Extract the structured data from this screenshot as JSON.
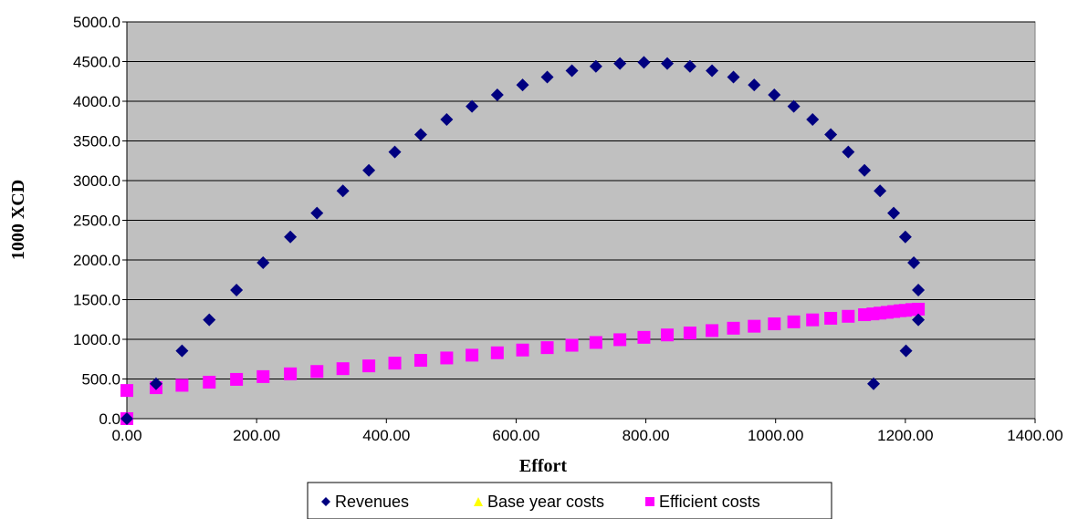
{
  "chart_data": {
    "type": "scatter",
    "title": "",
    "xlabel": "Effort",
    "ylabel": "1000 XCD",
    "xlim": [
      0,
      1400
    ],
    "ylim": [
      0,
      5000
    ],
    "x_ticks": [
      "0.00",
      "200.00",
      "400.00",
      "600.00",
      "800.00",
      "1000.00",
      "1200.00",
      "1400.00"
    ],
    "y_ticks": [
      "0.0",
      "500.0",
      "1000.0",
      "1500.0",
      "2000.0",
      "2500.0",
      "3000.0",
      "3500.0",
      "4000.0",
      "4500.0",
      "5000.0"
    ],
    "grid": "horizontal",
    "plot_background": "#c0c0c0",
    "legend_position": "bottom",
    "series": [
      {
        "name": "Revenues",
        "marker": "diamond",
        "color": "#000080",
        "points": [
          [
            0,
            0
          ],
          [
            45,
            440
          ],
          [
            85,
            855
          ],
          [
            127,
            1245
          ],
          [
            169,
            1620
          ],
          [
            210,
            1965
          ],
          [
            252,
            2290
          ],
          [
            293,
            2590
          ],
          [
            333,
            2870
          ],
          [
            373,
            3130
          ],
          [
            413,
            3360
          ],
          [
            453,
            3580
          ],
          [
            493,
            3770
          ],
          [
            532,
            3935
          ],
          [
            571,
            4080
          ],
          [
            610,
            4205
          ],
          [
            648,
            4305
          ],
          [
            686,
            4385
          ],
          [
            723,
            4440
          ],
          [
            760,
            4475
          ],
          [
            797,
            4490
          ],
          [
            833,
            4475
          ],
          [
            868,
            4440
          ],
          [
            902,
            4385
          ],
          [
            935,
            4305
          ],
          [
            967,
            4205
          ],
          [
            998,
            4080
          ],
          [
            1028,
            3935
          ],
          [
            1057,
            3770
          ],
          [
            1085,
            3580
          ],
          [
            1112,
            3360
          ],
          [
            1137,
            3130
          ],
          [
            1161,
            2870
          ],
          [
            1182,
            2590
          ],
          [
            1200,
            2290
          ],
          [
            1213,
            1965
          ],
          [
            1220,
            1620
          ],
          [
            1220,
            1245
          ],
          [
            1201,
            855
          ],
          [
            1151,
            440
          ]
        ]
      },
      {
        "name": "Base year costs",
        "marker": "triangle",
        "color": "#ffff00",
        "points": [
          [
            0,
            0
          ]
        ]
      },
      {
        "name": "Efficient costs",
        "marker": "square",
        "color": "#ff00ff",
        "points": [
          [
            0,
            0
          ],
          [
            0,
            355
          ],
          [
            45,
            390
          ],
          [
            85,
            420
          ],
          [
            127,
            460
          ],
          [
            169,
            495
          ],
          [
            210,
            530
          ],
          [
            252,
            565
          ],
          [
            293,
            595
          ],
          [
            333,
            630
          ],
          [
            373,
            665
          ],
          [
            413,
            700
          ],
          [
            453,
            735
          ],
          [
            493,
            765
          ],
          [
            532,
            800
          ],
          [
            571,
            830
          ],
          [
            610,
            865
          ],
          [
            648,
            895
          ],
          [
            686,
            925
          ],
          [
            723,
            960
          ],
          [
            760,
            995
          ],
          [
            797,
            1025
          ],
          [
            833,
            1055
          ],
          [
            868,
            1080
          ],
          [
            902,
            1110
          ],
          [
            935,
            1140
          ],
          [
            967,
            1165
          ],
          [
            998,
            1195
          ],
          [
            1028,
            1220
          ],
          [
            1057,
            1245
          ],
          [
            1085,
            1265
          ],
          [
            1112,
            1290
          ],
          [
            1137,
            1310
          ],
          [
            1150,
            1320
          ],
          [
            1161,
            1330
          ],
          [
            1172,
            1340
          ],
          [
            1182,
            1350
          ],
          [
            1192,
            1360
          ],
          [
            1200,
            1365
          ],
          [
            1210,
            1375
          ],
          [
            1220,
            1380
          ]
        ]
      }
    ]
  }
}
